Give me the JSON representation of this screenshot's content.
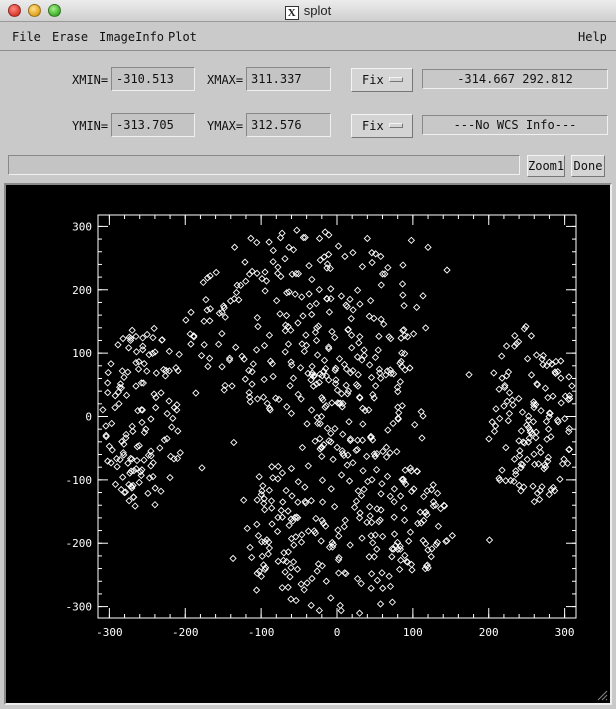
{
  "window": {
    "title": "splot"
  },
  "menubar": {
    "items": [
      "File",
      "Erase",
      "ImageInfo",
      "Plot"
    ],
    "help": "Help"
  },
  "controls": {
    "xmin_label": "XMIN=",
    "xmin_value": "-310.513",
    "xmax_label": "XMAX=",
    "xmax_value": "311.337",
    "ymin_label": "YMIN=",
    "ymin_value": "-313.705",
    "ymax_label": "YMAX=",
    "ymax_value": "312.576",
    "fix_x": "Fix",
    "fix_y": "Fix",
    "cursor_readout": "-314.667 292.812",
    "wcs_readout": "---No WCS Info---",
    "status_text": "",
    "zoom_button": "Zoom1",
    "done_button": "Done"
  },
  "chart_data": {
    "type": "scatter",
    "marker": "diamond",
    "point_color": "#ffffff",
    "background": "#000000",
    "xlim": [
      -315,
      315
    ],
    "ylim": [
      -318,
      318
    ],
    "xticks": [
      -300,
      -200,
      -100,
      0,
      100,
      200,
      300
    ],
    "yticks": [
      -300,
      -200,
      -100,
      0,
      100,
      200,
      300
    ],
    "clusters": [
      {
        "cx": -255,
        "cy": 0,
        "rx": 55,
        "ry": 145,
        "count": 120
      },
      {
        "cx": -40,
        "cy": 150,
        "rx": 160,
        "ry": 150,
        "count": 230
      },
      {
        "cx": 10,
        "cy": -170,
        "rx": 140,
        "ry": 145,
        "count": 240
      },
      {
        "cx": 255,
        "cy": 0,
        "rx": 60,
        "ry": 140,
        "count": 120
      },
      {
        "cx": 30,
        "cy": 10,
        "rx": 90,
        "ry": 80,
        "count": 60
      }
    ],
    "points": [
      [
        -282,
        123
      ],
      [
        -265,
        85
      ],
      [
        -245,
        -62
      ],
      [
        -232,
        -118
      ],
      [
        -297,
        -11
      ],
      [
        -265,
        48
      ],
      [
        -258,
        -93
      ],
      [
        -221,
        72
      ],
      [
        -241,
        139
      ],
      [
        -252,
        -20
      ],
      [
        -274,
        -133
      ],
      [
        -286,
        -68
      ],
      [
        -208,
        98
      ],
      [
        -186,
        37
      ],
      [
        -178,
        -81
      ],
      [
        -239,
        14
      ],
      [
        -300,
        -47
      ],
      [
        -224,
        -35
      ],
      [
        -271,
        -110
      ],
      [
        -256,
        111
      ],
      [
        -156,
        114
      ],
      [
        -136,
        -41
      ],
      [
        -105,
        156
      ],
      [
        -84,
        262
      ],
      [
        -53,
        294
      ],
      [
        -74,
        221
      ],
      [
        -127,
        207
      ],
      [
        -155,
        163
      ],
      [
        -27,
        120
      ],
      [
        -8,
        186
      ],
      [
        40,
        281
      ],
      [
        67,
        235
      ],
      [
        98,
        278
      ],
      [
        145,
        231
      ],
      [
        120,
        267
      ],
      [
        83,
        84
      ],
      [
        27,
        94
      ],
      [
        -48,
        77
      ],
      [
        -112,
        51
      ],
      [
        -123,
        -132
      ],
      [
        -90,
        -198
      ],
      [
        -62,
        -253
      ],
      [
        -34,
        -298
      ],
      [
        2,
        -226
      ],
      [
        45,
        -271
      ],
      [
        73,
        -293
      ],
      [
        118,
        -236
      ],
      [
        152,
        -188
      ],
      [
        127,
        -141
      ],
      [
        98,
        -86
      ],
      [
        58,
        -122
      ],
      [
        21,
        -73
      ],
      [
        -19,
        -135
      ],
      [
        -51,
        -103
      ],
      [
        -72,
        -159
      ],
      [
        -106,
        -274
      ],
      [
        -137,
        -224
      ],
      [
        -8,
        -40
      ],
      [
        34,
        -12
      ],
      [
        86,
        17
      ],
      [
        112,
        -34
      ],
      [
        -31,
        48
      ],
      [
        6,
        36
      ],
      [
        249,
        142
      ],
      [
        263,
        97
      ],
      [
        288,
        68
      ],
      [
        301,
        32
      ],
      [
        276,
        -8
      ],
      [
        241,
        -54
      ],
      [
        229,
        -101
      ],
      [
        267,
        -131
      ],
      [
        304,
        -74
      ],
      [
        221,
        46
      ],
      [
        209,
        -15
      ],
      [
        234,
        111
      ],
      [
        285,
        -112
      ],
      [
        174,
        66
      ],
      [
        201,
        -195
      ],
      [
        255,
        -25
      ],
      [
        232,
        18
      ],
      [
        281,
        5
      ]
    ]
  }
}
